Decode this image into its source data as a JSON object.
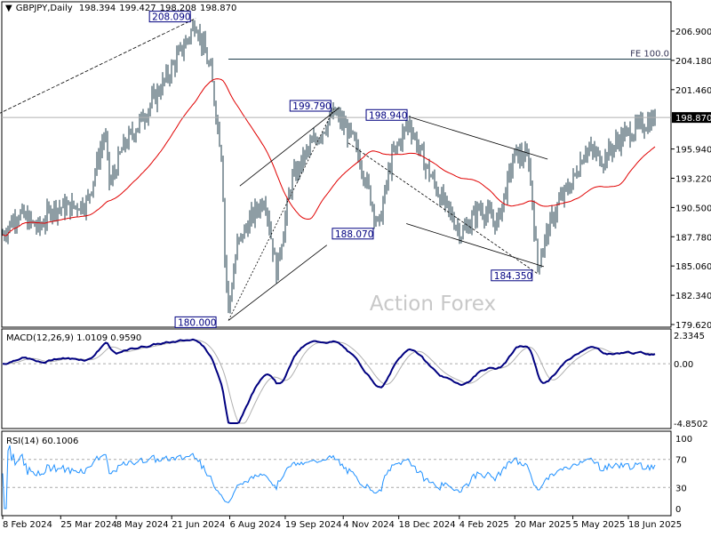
{
  "header": {
    "symbol": "GBPJPY,Daily",
    "open": "198.394",
    "high": "199.427",
    "low": "198.208",
    "close": "198.870"
  },
  "watermark": "Action Forex",
  "colors": {
    "bars": "#1d3b4a",
    "ma": "#e00000",
    "macd": "#000080",
    "signal": "#b0b0b0",
    "rsi": "#1e90ff",
    "annotation": "#000080",
    "price_label_bg": "#000000"
  },
  "chart_data": {
    "type": "ohlc",
    "title": "GBPJPY,Daily",
    "last_price": "198.870",
    "y_ticks": [
      "206.900",
      "204.180",
      "201.460",
      "198.870",
      "195.940",
      "193.220",
      "190.500",
      "187.780",
      "185.060",
      "182.340",
      "179.620"
    ],
    "ylim": [
      179.62,
      209.5
    ],
    "x_ticks": [
      "8 Feb 2024",
      "25 Mar 2024",
      "8 May 2024",
      "21 Jun 2024",
      "6 Aug 2024",
      "19 Sep 2024",
      "4 Nov 2024",
      "18 Dec 2024",
      "4 Feb 2025",
      "20 Mar 2025",
      "5 May 2025",
      "18 Jun 2025"
    ],
    "x_tick_dates": [
      "2024-02-08",
      "2024-03-25",
      "2024-05-08",
      "2024-06-21",
      "2024-08-06",
      "2024-09-19",
      "2024-11-04",
      "2024-12-18",
      "2025-02-04",
      "2025-03-20",
      "2025-05-05",
      "2025-06-18"
    ],
    "close_path": [
      [
        "2024-02-08",
        188.0
      ],
      [
        "2024-02-20",
        190.0
      ],
      [
        "2024-03-08",
        188.5
      ],
      [
        "2024-03-18",
        190.5
      ],
      [
        "2024-04-01",
        190.5
      ],
      [
        "2024-04-15",
        191.0
      ],
      [
        "2024-04-29",
        197.5
      ],
      [
        "2024-05-03",
        192.5
      ],
      [
        "2024-05-13",
        196.0
      ],
      [
        "2024-05-27",
        198.5
      ],
      [
        "2024-06-19",
        203.0
      ],
      [
        "2024-07-05",
        206.5
      ],
      [
        "2024-07-10",
        207.8
      ],
      [
        "2024-07-22",
        203.0
      ],
      [
        "2024-07-31",
        195.0
      ],
      [
        "2024-08-02",
        186.0
      ],
      [
        "2024-08-05",
        181.0
      ],
      [
        "2024-08-12",
        187.0
      ],
      [
        "2024-08-23",
        189.5
      ],
      [
        "2024-09-03",
        191.5
      ],
      [
        "2024-09-12",
        184.5
      ],
      [
        "2024-09-24",
        193.0
      ],
      [
        "2024-10-08",
        196.0
      ],
      [
        "2024-10-28",
        199.3
      ],
      [
        "2024-11-11",
        197.0
      ],
      [
        "2024-11-21",
        193.5
      ],
      [
        "2024-12-02",
        188.6
      ],
      [
        "2024-12-12",
        195.0
      ],
      [
        "2024-12-26",
        198.5
      ],
      [
        "2025-01-06",
        195.0
      ],
      [
        "2025-01-20",
        191.5
      ],
      [
        "2025-02-06",
        188.0
      ],
      [
        "2025-02-20",
        190.5
      ],
      [
        "2025-03-06",
        189.0
      ],
      [
        "2025-03-20",
        195.5
      ],
      [
        "2025-03-31",
        195.0
      ],
      [
        "2025-04-07",
        185.0
      ],
      [
        "2025-04-14",
        188.0
      ],
      [
        "2025-04-24",
        191.0
      ],
      [
        "2025-05-05",
        193.0
      ],
      [
        "2025-05-15",
        196.0
      ],
      [
        "2025-05-29",
        195.0
      ],
      [
        "2025-06-12",
        197.0
      ],
      [
        "2025-06-27",
        198.0
      ],
      [
        "2025-07-10",
        198.87
      ]
    ],
    "moving_average": {
      "color": "#e00000"
    },
    "annotations": [
      {
        "label": "208.090",
        "date": "2024-07-10",
        "price": 208.09
      },
      {
        "label": "199.790",
        "date": "2024-10-28",
        "price": 199.79
      },
      {
        "label": "198.940",
        "date": "2024-12-26",
        "price": 198.94
      },
      {
        "label": "188.070",
        "date": "2024-12-02",
        "price": 188.07
      },
      {
        "label": "184.350",
        "date": "2025-04-07",
        "price": 184.35
      },
      {
        "label": "180.000",
        "date": "2024-08-05",
        "price": 180.0
      }
    ],
    "fe_line": {
      "label": "FE 100.0",
      "price": 204.3
    },
    "macd": {
      "label": "MACD(12,26,9) 1.0109 0.9590",
      "y_ticks": [
        "2.3345",
        "0.00",
        "-4.8502"
      ],
      "ylim": [
        -4.8502,
        2.3345
      ]
    },
    "rsi": {
      "label": "RSI(14) 60.1006",
      "y_ticks": [
        "100",
        "70",
        "30",
        "0"
      ],
      "levels": [
        70,
        30
      ],
      "ylim": [
        0,
        100
      ]
    }
  }
}
